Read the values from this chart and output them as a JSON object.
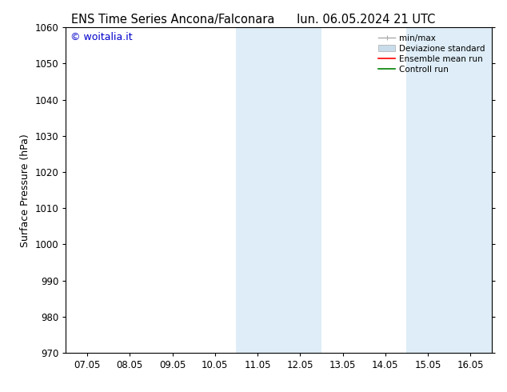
{
  "title_left": "ENS Time Series Ancona/Falconara",
  "title_right": "lun. 06.05.2024 21 UTC",
  "ylabel": "Surface Pressure (hPa)",
  "watermark": "© woitalia.it",
  "watermark_color": "#0000cc",
  "ylim": [
    970,
    1060
  ],
  "yticks": [
    970,
    980,
    990,
    1000,
    1010,
    1020,
    1030,
    1040,
    1050,
    1060
  ],
  "xtick_labels": [
    "07.05",
    "08.05",
    "09.05",
    "10.05",
    "11.05",
    "12.05",
    "13.05",
    "14.05",
    "15.05",
    "16.05"
  ],
  "xtick_positions": [
    0,
    1,
    2,
    3,
    4,
    5,
    6,
    7,
    8,
    9
  ],
  "xlim_start": -0.5,
  "xlim_end": 9.5,
  "shaded_regions": [
    {
      "xmin": 3.5,
      "xmax": 4.5,
      "color": "#deedf7"
    },
    {
      "xmin": 4.5,
      "xmax": 5.5,
      "color": "#deedf7"
    },
    {
      "xmin": 7.5,
      "xmax": 8.5,
      "color": "#deedf7"
    },
    {
      "xmin": 8.5,
      "xmax": 9.5,
      "color": "#deedf7"
    }
  ],
  "legend_entries": [
    {
      "label": "min/max",
      "color": "#aaaaaa",
      "lw": 1.0,
      "type": "minmax"
    },
    {
      "label": "Deviazione standard",
      "color": "#c8dcea",
      "lw": 8,
      "type": "band"
    },
    {
      "label": "Ensemble mean run",
      "color": "red",
      "lw": 1.2,
      "type": "line"
    },
    {
      "label": "Controll run",
      "color": "green",
      "lw": 1.2,
      "type": "line"
    }
  ],
  "bg_color": "#ffffff",
  "tick_label_fontsize": 8.5,
  "axis_label_fontsize": 9,
  "title_fontsize": 10.5,
  "legend_fontsize": 7.5
}
